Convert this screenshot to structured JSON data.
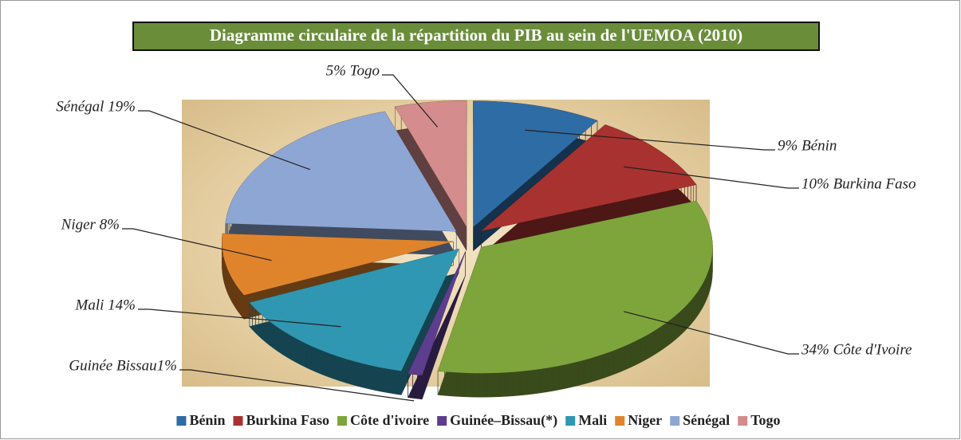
{
  "chart_data": {
    "type": "pie3d",
    "title": "Diagramme circulaire de la répartition du PIB au sein de l'UEMOA (2010)",
    "categories": [
      "Bénin",
      "Burkina Faso",
      "Côte d'ivoire",
      "Guinée–Bissau(*)",
      "Mali",
      "Niger",
      "Sénégal",
      "Togo"
    ],
    "values": [
      9,
      10,
      34,
      1,
      14,
      8,
      19,
      5
    ],
    "value_labels": [
      "9% Bénin",
      "10% Burkina Faso",
      "34%  Côte d'Ivoire",
      "Guinée Bissau1%",
      "Mali 14%",
      "Niger 8%",
      "Sénégal 19%",
      "5% Togo"
    ],
    "colors": [
      "#2e6ca6",
      "#a8322f",
      "#7ea43c",
      "#5c3d8e",
      "#2f97b1",
      "#e0842c",
      "#8ea6d4",
      "#d48c8c"
    ],
    "legend": "bottom"
  }
}
